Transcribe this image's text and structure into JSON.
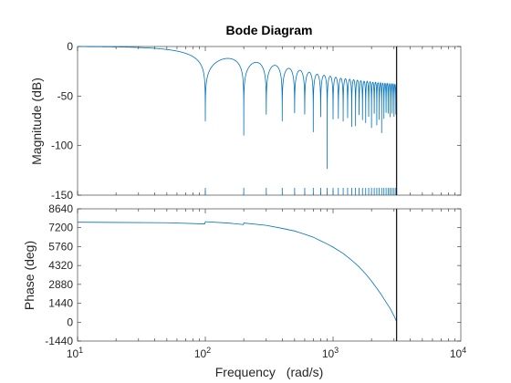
{
  "colors": {
    "series": "#0072bd",
    "axes": "#262626",
    "nyquist_line": "#1a1a1a",
    "background": "#ffffff"
  },
  "chart_data": {
    "type": "line",
    "title": "Bode Diagram",
    "xlabel_text": "Frequency",
    "xlabel_unit": "(rad/s)",
    "xscale": "log",
    "xlim": [
      10,
      10000
    ],
    "xticks": [
      {
        "base": "10",
        "exp": "1",
        "value": 10
      },
      {
        "base": "10",
        "exp": "2",
        "value": 100
      },
      {
        "base": "10",
        "exp": "3",
        "value": 1000
      },
      {
        "base": "10",
        "exp": "4",
        "value": 10000
      }
    ],
    "nyquist_frequency": 3142,
    "grid": false,
    "panels": [
      {
        "id": "magnitude",
        "ylabel": "Magnitude (dB)",
        "ylim": [
          -150,
          0
        ],
        "yticks": [
          "0",
          "-50",
          "-100",
          "-150"
        ],
        "ytick_values": [
          0,
          -50,
          -100,
          -150
        ],
        "series": [
          {
            "kind": "comb_filter_magnitude",
            "notch_spacing": 100,
            "notch_first": 100,
            "notch_last": 3100,
            "notch_floor": -150,
            "lobe_peak_db": [
              -12,
              -16,
              -19,
              -22,
              -24,
              -26,
              -28,
              -29,
              -30,
              -31,
              -32,
              -32.5,
              -33,
              -33.5,
              -34,
              -34.5,
              -35,
              -35,
              -35.5,
              -36,
              -36,
              -36.5,
              -36.5,
              -37,
              -37,
              -37,
              -37.5,
              -37.5,
              -37.5,
              -38,
              -38
            ]
          }
        ]
      },
      {
        "id": "phase",
        "ylabel": "Phase (deg)",
        "ylim": [
          -1440,
          8640
        ],
        "yticks": [
          "8640",
          "7200",
          "5760",
          "4320",
          "2880",
          "1440",
          "0",
          "-1440"
        ],
        "ytick_values": [
          8640,
          7200,
          5760,
          4320,
          2880,
          1440,
          0,
          -1440
        ],
        "series": [
          {
            "kind": "line",
            "x": [
              10,
              50,
              99,
              100,
              150,
              199,
              200,
              300,
              400,
              500,
              600,
              700,
              800,
              900,
              1000,
              1200,
              1400,
              1600,
              1800,
              2000,
              2200,
              2400,
              2600,
              2800,
              3000,
              3142
            ],
            "y": [
              7620,
              7580,
              7490,
              7660,
              7560,
              7440,
              7560,
              7380,
              7150,
              6950,
              6700,
              6480,
              6200,
              5960,
              5720,
              5240,
              4720,
              4210,
              3680,
              3130,
              2580,
              2060,
              1520,
              1040,
              480,
              40
            ]
          }
        ]
      }
    ]
  }
}
